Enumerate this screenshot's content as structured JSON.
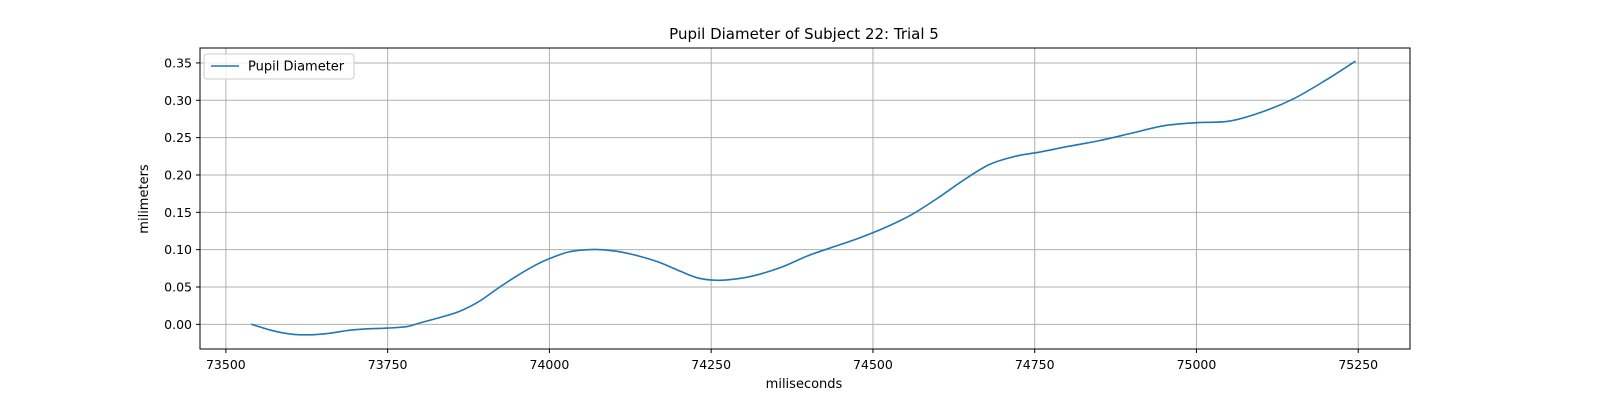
{
  "chart_data": {
    "type": "line",
    "title": "Pupil Diameter of Subject 22: Trial 5",
    "xlabel": "miliseconds",
    "ylabel": "milimeters",
    "xlim": [
      73460,
      75330
    ],
    "ylim": [
      -0.033,
      0.37
    ],
    "x_ticks": [
      73500,
      73750,
      74000,
      74250,
      74500,
      74750,
      75000,
      75250
    ],
    "y_ticks": [
      0.0,
      0.05,
      0.1,
      0.15,
      0.2,
      0.25,
      0.3,
      0.35
    ],
    "x_tick_labels": [
      "73500",
      "73750",
      "74000",
      "74250",
      "74500",
      "74750",
      "75000",
      "75250"
    ],
    "y_tick_labels": [
      "0.00",
      "0.05",
      "0.10",
      "0.15",
      "0.20",
      "0.25",
      "0.30",
      "0.35"
    ],
    "grid": true,
    "legend_position": "upper left",
    "colors": {
      "series": "#1f77b4",
      "grid": "#b0b0b0"
    },
    "series": [
      {
        "name": "Pupil Diameter",
        "x": [
          73540,
          73570,
          73600,
          73630,
          73660,
          73690,
          73720,
          73750,
          73780,
          73800,
          73830,
          73860,
          73890,
          73920,
          73950,
          73980,
          74000,
          74030,
          74060,
          74080,
          74110,
          74140,
          74170,
          74200,
          74230,
          74260,
          74290,
          74320,
          74360,
          74400,
          74440,
          74480,
          74520,
          74560,
          74600,
          74640,
          74680,
          74720,
          74760,
          74800,
          74850,
          74900,
          74950,
          75000,
          75050,
          75100,
          75150,
          75200,
          75245
        ],
        "y": [
          0.0,
          -0.008,
          -0.013,
          -0.014,
          -0.012,
          -0.008,
          -0.006,
          -0.005,
          -0.003,
          0.002,
          0.009,
          0.017,
          0.03,
          0.048,
          0.065,
          0.08,
          0.088,
          0.097,
          0.1,
          0.1,
          0.097,
          0.091,
          0.083,
          0.072,
          0.062,
          0.059,
          0.061,
          0.066,
          0.077,
          0.092,
          0.104,
          0.116,
          0.13,
          0.147,
          0.169,
          0.193,
          0.214,
          0.225,
          0.231,
          0.238,
          0.246,
          0.256,
          0.266,
          0.27,
          0.272,
          0.284,
          0.302,
          0.327,
          0.352
        ]
      }
    ]
  }
}
